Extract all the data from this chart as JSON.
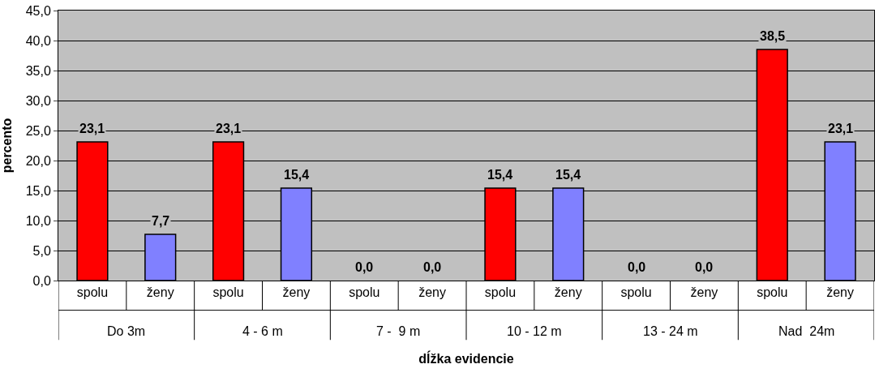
{
  "chart_data": {
    "type": "bar",
    "xlabel": "dĺžka evidencie",
    "ylabel": "percento",
    "categories": [
      "spolu",
      "ženy",
      "spolu",
      "ženy",
      "spolu",
      "ženy",
      "spolu",
      "ženy",
      "spolu",
      "ženy",
      "spolu",
      "ženy"
    ],
    "values": [
      23.1,
      7.7,
      23.1,
      15.4,
      0.0,
      0.0,
      15.4,
      15.4,
      0.0,
      0.0,
      38.5,
      23.1
    ],
    "colors": [
      "#ff0000",
      "#8080ff",
      "#ff0000",
      "#8080ff",
      "#ff0000",
      "#8080ff",
      "#ff0000",
      "#8080ff",
      "#ff0000",
      "#8080ff",
      "#ff0000",
      "#8080ff"
    ],
    "value_labels": [
      "23,1",
      "7,7",
      "23,1",
      "15,4",
      "0,0",
      "0,0",
      "15,4",
      "15,4",
      "0,0",
      "0,0",
      "38,5",
      "23,1"
    ],
    "annotations": [
      "Do 3m",
      "4 - 6 m",
      "7 -  9 m",
      "10 - 12 m",
      "13 - 24 m",
      "Nad  24m"
    ],
    "ylim": [
      0,
      45
    ],
    "yticks": [
      {
        "value": 0,
        "label": "0,0"
      },
      {
        "value": 5,
        "label": "5,0"
      },
      {
        "value": 10,
        "label": "10,0"
      },
      {
        "value": 15,
        "label": "15,0"
      },
      {
        "value": 20,
        "label": "20,0"
      },
      {
        "value": 25,
        "label": "25,0"
      },
      {
        "value": 30,
        "label": "30,0"
      },
      {
        "value": 35,
        "label": "35,0"
      },
      {
        "value": 40,
        "label": "40,0"
      },
      {
        "value": 45,
        "label": "45,0"
      }
    ],
    "grid": "y"
  }
}
